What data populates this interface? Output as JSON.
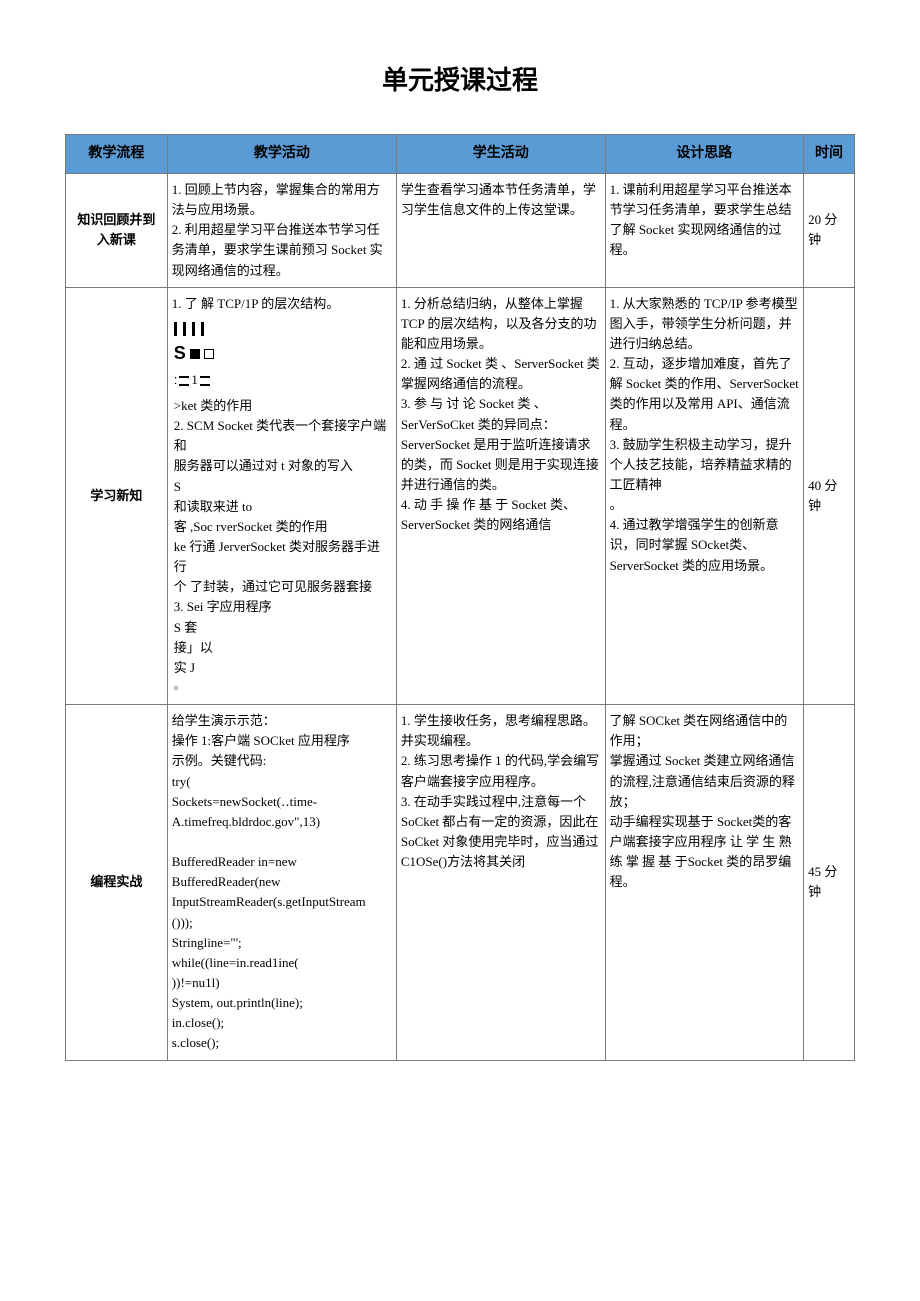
{
  "page_title": "单元授课过程",
  "headers": {
    "flow": "教学流程",
    "activity": "教学活动",
    "student": "学生活动",
    "design": "设计思路",
    "time": "时间"
  },
  "row1": {
    "flow": "知识回顾并到\n入新课",
    "activity": "1. 回顾上节内容，掌握集合的常用方法与应用场景。\n2. 利用超星学习平台推送本节学习任务清单，要求学生课前预习 Socket 实现网络通信的过程。",
    "student": "学生查看学习通本节任务清单，学习学生信息文件的上传这堂课。",
    "design": "1. 课前利用超星学习平台推送本节学习任务清单，要求学生总结了解 Socket 实现网络通信的过程。",
    "time": "20 分钟"
  },
  "row2": {
    "flow": "学习新知",
    "activity": {
      "pre": "1. 了   解 TCP/1P 的层次结构。",
      "nested_left": [
        ">ket 类的作用",
        "2.   SCM Socket 类代表一个套接字户端和",
        "      服务器可以通过对 t 对象的写入",
        " S",
        "      和读取来进 to",
        " 客 ,Soc rverSocket 类的作用",
        " ke 行通 JerverSocket 类对服务器手进行",
        " 个       了封装，通过它可见服务器套接",
        "3. Sei 字应用程序",
        " S 套",
        " 接」以",
        " 实 J",
        "◦"
      ],
      "nested_right": ""
    },
    "student": "1. 分析总结归纳，从整体上掌握 TCP 的层次结构，以及各分支的功能和应用场景。\n2.  通 过  Socket  类 、ServerSocket 类掌握网络通信的流程。\n3. 参 与 讨 论 Socket 类 、SerVerSoCket 类的异同点：ServerSocket 是用于监听连接请求的类，而 Socket 则是用于实现连接并进行通信的类。\n4. 动 手 操 作 基 于 Socket 类、\nServerSocket 类的网络通信",
    "design": "1. 从大家熟悉的 TCP/IP 参考模型图入手，带领学生分析问题，并进行归纳总结。\n2. 互动，逐步增加难度，首先了解 Socket 类的作用、ServerSocket 类的作用以及常用 API、通信流程。\n3. 鼓励学生积极主动学习，提升个人技艺技能，培养精益求精的工匠精神\n。\n4. 通过教学增强学生的创新意识，同时掌握 SOcket类、ServerSocket 类的应用场景。",
    "time": "40 分钟"
  },
  "row3": {
    "flow": "编程实战",
    "activity": "给学生演示示范：\n操作 1:客户端 SOCket 应用程序\n示例。关键代码:\ntry(\nSockets=newSocket(‥time-\nA.timefreq.bldrdoc.gov\",13)\n\nBufferedReader            in=new\nBufferedReader(new\nInputStreamReader(s.getInputStream\n()));\nStringline=\"';\nwhile((line=in.read1ine(\n))!=nu1l)\nSystem, out.println(line);\nin.close();\ns.close();",
    "student": "1. 学生接收任务，思考编程思路。并实现编程。\n2. 练习思考操作 1 的代码,学会编写客户端套接字应用程序。\n3. 在动手实践过程中,注意每一个 SoCket 都占有一定的资源，因此在 SoCket 对象使用完毕时，应当通过 C1OSe()方法将其关闭",
    "design": "了解 SOCket 类在网络通信中的作用；\n掌握通过 Socket 类建立网络通信的流程,注意通信结束后资源的释放；\n动手编程实现基于 Socket类的客户端套接字应用程序 让 学 生 熟 练 掌 握 基 于Socket 类的昂罗编程。",
    "time": "45 分钟"
  }
}
